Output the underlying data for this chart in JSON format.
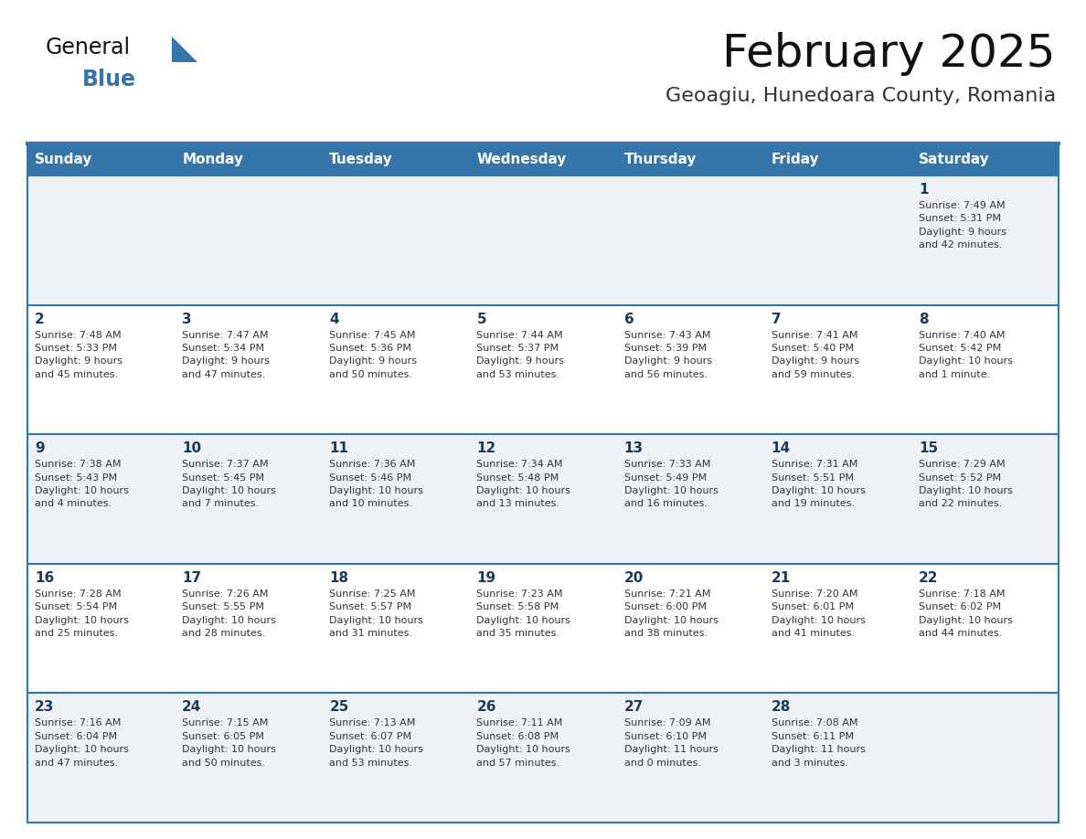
{
  "title": "February 2025",
  "subtitle": "Geoagiu, Hunedoara County, Romania",
  "header_bg": "#3575aa",
  "header_text": "#ffffff",
  "day_names": [
    "Sunday",
    "Monday",
    "Tuesday",
    "Wednesday",
    "Thursday",
    "Friday",
    "Saturday"
  ],
  "cell_bg_even": "#eef2f7",
  "cell_bg_odd": "#ffffff",
  "cell_border": "#3575aa",
  "day_num_color": "#1a3a5c",
  "info_color": "#333333",
  "weeks": [
    [
      {
        "day": "",
        "info": ""
      },
      {
        "day": "",
        "info": ""
      },
      {
        "day": "",
        "info": ""
      },
      {
        "day": "",
        "info": ""
      },
      {
        "day": "",
        "info": ""
      },
      {
        "day": "",
        "info": ""
      },
      {
        "day": "1",
        "info": "Sunrise: 7:49 AM\nSunset: 5:31 PM\nDaylight: 9 hours\nand 42 minutes."
      }
    ],
    [
      {
        "day": "2",
        "info": "Sunrise: 7:48 AM\nSunset: 5:33 PM\nDaylight: 9 hours\nand 45 minutes."
      },
      {
        "day": "3",
        "info": "Sunrise: 7:47 AM\nSunset: 5:34 PM\nDaylight: 9 hours\nand 47 minutes."
      },
      {
        "day": "4",
        "info": "Sunrise: 7:45 AM\nSunset: 5:36 PM\nDaylight: 9 hours\nand 50 minutes."
      },
      {
        "day": "5",
        "info": "Sunrise: 7:44 AM\nSunset: 5:37 PM\nDaylight: 9 hours\nand 53 minutes."
      },
      {
        "day": "6",
        "info": "Sunrise: 7:43 AM\nSunset: 5:39 PM\nDaylight: 9 hours\nand 56 minutes."
      },
      {
        "day": "7",
        "info": "Sunrise: 7:41 AM\nSunset: 5:40 PM\nDaylight: 9 hours\nand 59 minutes."
      },
      {
        "day": "8",
        "info": "Sunrise: 7:40 AM\nSunset: 5:42 PM\nDaylight: 10 hours\nand 1 minute."
      }
    ],
    [
      {
        "day": "9",
        "info": "Sunrise: 7:38 AM\nSunset: 5:43 PM\nDaylight: 10 hours\nand 4 minutes."
      },
      {
        "day": "10",
        "info": "Sunrise: 7:37 AM\nSunset: 5:45 PM\nDaylight: 10 hours\nand 7 minutes."
      },
      {
        "day": "11",
        "info": "Sunrise: 7:36 AM\nSunset: 5:46 PM\nDaylight: 10 hours\nand 10 minutes."
      },
      {
        "day": "12",
        "info": "Sunrise: 7:34 AM\nSunset: 5:48 PM\nDaylight: 10 hours\nand 13 minutes."
      },
      {
        "day": "13",
        "info": "Sunrise: 7:33 AM\nSunset: 5:49 PM\nDaylight: 10 hours\nand 16 minutes."
      },
      {
        "day": "14",
        "info": "Sunrise: 7:31 AM\nSunset: 5:51 PM\nDaylight: 10 hours\nand 19 minutes."
      },
      {
        "day": "15",
        "info": "Sunrise: 7:29 AM\nSunset: 5:52 PM\nDaylight: 10 hours\nand 22 minutes."
      }
    ],
    [
      {
        "day": "16",
        "info": "Sunrise: 7:28 AM\nSunset: 5:54 PM\nDaylight: 10 hours\nand 25 minutes."
      },
      {
        "day": "17",
        "info": "Sunrise: 7:26 AM\nSunset: 5:55 PM\nDaylight: 10 hours\nand 28 minutes."
      },
      {
        "day": "18",
        "info": "Sunrise: 7:25 AM\nSunset: 5:57 PM\nDaylight: 10 hours\nand 31 minutes."
      },
      {
        "day": "19",
        "info": "Sunrise: 7:23 AM\nSunset: 5:58 PM\nDaylight: 10 hours\nand 35 minutes."
      },
      {
        "day": "20",
        "info": "Sunrise: 7:21 AM\nSunset: 6:00 PM\nDaylight: 10 hours\nand 38 minutes."
      },
      {
        "day": "21",
        "info": "Sunrise: 7:20 AM\nSunset: 6:01 PM\nDaylight: 10 hours\nand 41 minutes."
      },
      {
        "day": "22",
        "info": "Sunrise: 7:18 AM\nSunset: 6:02 PM\nDaylight: 10 hours\nand 44 minutes."
      }
    ],
    [
      {
        "day": "23",
        "info": "Sunrise: 7:16 AM\nSunset: 6:04 PM\nDaylight: 10 hours\nand 47 minutes."
      },
      {
        "day": "24",
        "info": "Sunrise: 7:15 AM\nSunset: 6:05 PM\nDaylight: 10 hours\nand 50 minutes."
      },
      {
        "day": "25",
        "info": "Sunrise: 7:13 AM\nSunset: 6:07 PM\nDaylight: 10 hours\nand 53 minutes."
      },
      {
        "day": "26",
        "info": "Sunrise: 7:11 AM\nSunset: 6:08 PM\nDaylight: 10 hours\nand 57 minutes."
      },
      {
        "day": "27",
        "info": "Sunrise: 7:09 AM\nSunset: 6:10 PM\nDaylight: 11 hours\nand 0 minutes."
      },
      {
        "day": "28",
        "info": "Sunrise: 7:08 AM\nSunset: 6:11 PM\nDaylight: 11 hours\nand 3 minutes."
      },
      {
        "day": "",
        "info": ""
      }
    ]
  ],
  "logo_text1": "General",
  "logo_text2": "Blue",
  "logo_color1": "#111111",
  "logo_color2": "#3575aa",
  "logo_triangle_color": "#3575aa",
  "title_fontsize": 36,
  "subtitle_fontsize": 16,
  "header_fontsize": 11,
  "daynum_fontsize": 11,
  "info_fontsize": 8
}
